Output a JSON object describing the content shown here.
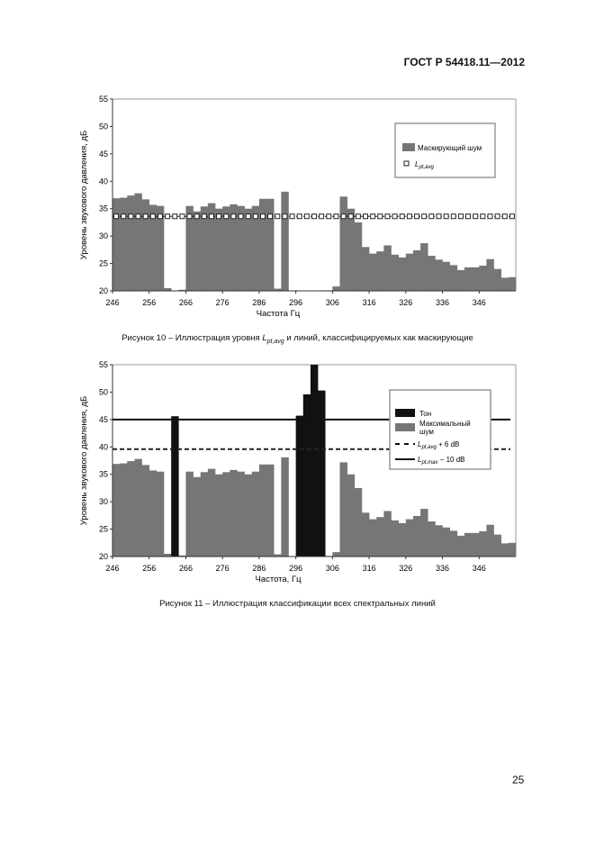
{
  "header": {
    "doc_id": "ГОСТ Р 54418.11—2012"
  },
  "figure10": {
    "caption_pre": "Рисунок 10 – Иллюстрация уровня ",
    "caption_sym": "L",
    "caption_sub": "pt,avg",
    "caption_post": " и линий, классифицируемых как маскирующие"
  },
  "figure11": {
    "caption": "Рисунок 11 – Иллюстрация классификации всех спектральных линий"
  },
  "page_number": "25",
  "chart_data": [
    {
      "type": "bar",
      "ylabel": "Уровень звукового давления, дБ",
      "xlabel": "Частота Гц",
      "ylim": [
        20,
        55
      ],
      "xlim": [
        246,
        356
      ],
      "bar_width_hz": 2,
      "yticks": [
        "20",
        "25",
        "30",
        "35",
        "40",
        "45",
        "50",
        "55"
      ],
      "xticks": [
        "246",
        "256",
        "266",
        "276",
        "286",
        "296",
        "306",
        "316",
        "326",
        "336",
        "346"
      ],
      "x": [
        246,
        248,
        250,
        252,
        254,
        256,
        258,
        260,
        262,
        264,
        266,
        268,
        270,
        272,
        274,
        276,
        278,
        280,
        282,
        284,
        286,
        288,
        290,
        292,
        294,
        296,
        298,
        300,
        302,
        304,
        306,
        308,
        310,
        312,
        314,
        316,
        318,
        320,
        322,
        324,
        326,
        328,
        330,
        332,
        334,
        336,
        338,
        340,
        342,
        344,
        346,
        348,
        350,
        352,
        354
      ],
      "values": [
        36.9,
        37.0,
        37.4,
        37.8,
        36.7,
        35.7,
        35.5,
        20.5,
        null,
        20.2,
        35.5,
        34.5,
        35.4,
        36.0,
        35.0,
        35.4,
        35.8,
        35.5,
        35.0,
        35.5,
        36.8,
        36.8,
        20.4,
        38.1,
        20.0,
        null,
        null,
        null,
        null,
        20.1,
        20.8,
        37.2,
        35.0,
        32.5,
        28.0,
        26.8,
        27.2,
        28.3,
        26.6,
        26.1,
        26.8,
        27.4,
        28.7,
        26.4,
        25.7,
        25.3,
        24.7,
        23.8,
        24.3,
        24.3,
        24.6,
        25.8,
        24.0,
        22.4,
        22.5
      ],
      "lines": [
        {
          "name_sym": "L",
          "name_sub": "pt,avg",
          "name_suffix": "",
          "value": 33.6,
          "style": "squares"
        }
      ],
      "legend": {
        "placement": "top-right",
        "noise_label": "Маскирующий шум"
      },
      "colors": {
        "noise": "#767676",
        "tone": "#111111"
      }
    },
    {
      "type": "bar",
      "ylabel": "Уровень звукового давления, дБ",
      "xlabel": "Частота, Гц",
      "ylim": [
        20,
        55
      ],
      "xlim": [
        246,
        356
      ],
      "bar_width_hz": 2,
      "yticks": [
        "20",
        "25",
        "30",
        "35",
        "40",
        "45",
        "50",
        "55"
      ],
      "xticks": [
        "246",
        "256",
        "266",
        "276",
        "286",
        "296",
        "306",
        "316",
        "326",
        "336",
        "346"
      ],
      "x": [
        246,
        248,
        250,
        252,
        254,
        256,
        258,
        260,
        262,
        264,
        266,
        268,
        270,
        272,
        274,
        276,
        278,
        280,
        282,
        284,
        286,
        288,
        290,
        292,
        294,
        296,
        298,
        300,
        302,
        304,
        306,
        308,
        310,
        312,
        314,
        316,
        318,
        320,
        322,
        324,
        326,
        328,
        330,
        332,
        334,
        336,
        338,
        340,
        342,
        344,
        346,
        348,
        350,
        352,
        354
      ],
      "values": [
        36.9,
        37.0,
        37.4,
        37.8,
        36.7,
        35.7,
        35.5,
        20.5,
        45.6,
        20.2,
        35.5,
        34.5,
        35.4,
        36.0,
        35.0,
        35.4,
        35.8,
        35.5,
        35.0,
        35.5,
        36.8,
        36.8,
        20.4,
        38.1,
        20.0,
        45.7,
        49.6,
        55.0,
        50.3,
        20.1,
        20.8,
        37.2,
        35.0,
        32.5,
        28.0,
        26.8,
        27.2,
        28.3,
        26.6,
        26.1,
        26.8,
        27.4,
        28.7,
        26.4,
        25.7,
        25.3,
        24.7,
        23.8,
        24.3,
        24.3,
        24.6,
        25.8,
        24.0,
        22.4,
        22.5
      ],
      "classes": [
        "N",
        "N",
        "N",
        "N",
        "N",
        "N",
        "N",
        "N",
        "T",
        "N",
        "N",
        "N",
        "N",
        "N",
        "N",
        "N",
        "N",
        "N",
        "N",
        "N",
        "N",
        "N",
        "N",
        "N",
        "N",
        "T",
        "T",
        "T",
        "T",
        "N",
        "N",
        "N",
        "N",
        "N",
        "N",
        "N",
        "N",
        "N",
        "N",
        "N",
        "N",
        "N",
        "N",
        "N",
        "N",
        "N",
        "N",
        "N",
        "N",
        "N",
        "N",
        "N",
        "N",
        "N",
        "N"
      ],
      "lines": [
        {
          "name_sym": "L",
          "name_sub": "pt,avg",
          "name_suffix": " + 6 dB",
          "value": 39.6,
          "style": "dashed"
        },
        {
          "name_sym": "L",
          "name_sub": "pt,max",
          "name_suffix": " − 10 dB",
          "value": 45.0,
          "style": "solid"
        }
      ],
      "legend": {
        "placement": "top-right",
        "tone_label": "Тон",
        "noise_label_1": "Максимальный",
        "noise_label_2": "шум"
      },
      "colors": {
        "noise": "#767676",
        "tone": "#111111"
      }
    }
  ]
}
